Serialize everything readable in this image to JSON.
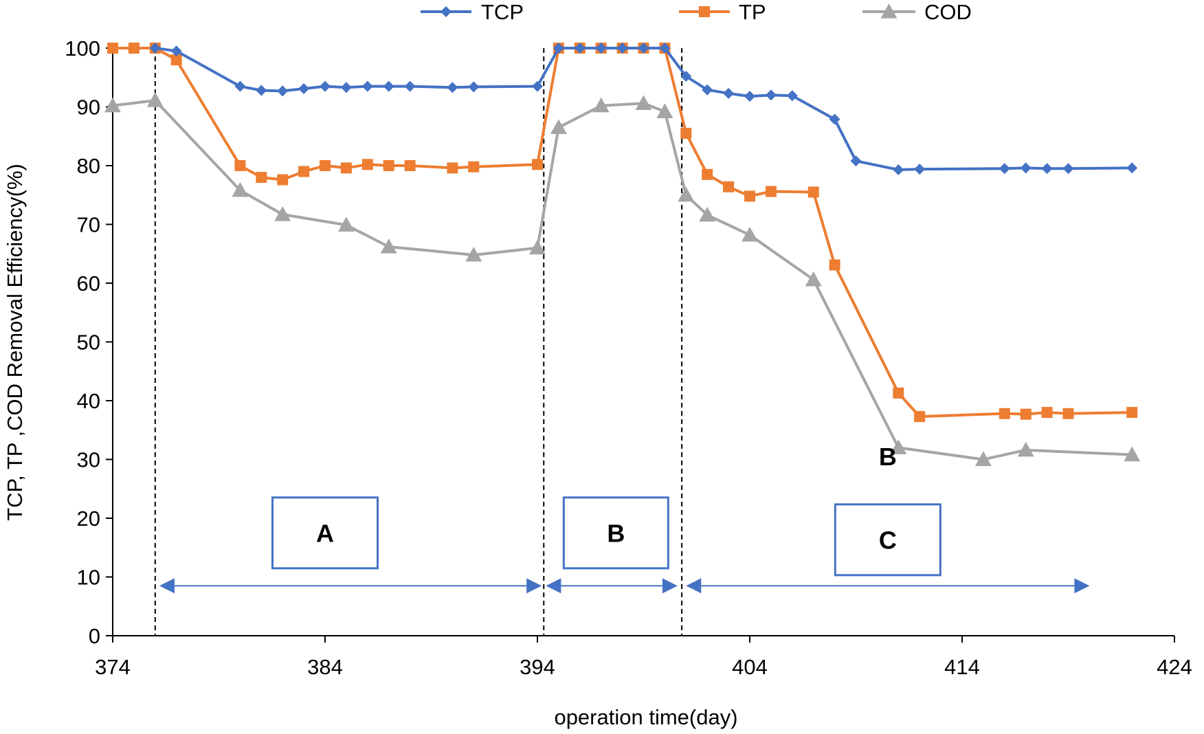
{
  "chart_data": {
    "type": "line",
    "title": "",
    "xlabel": "operation time(day)",
    "ylabel": "TCP, TP ,COD Removal Efficiency(%)",
    "xlim": [
      374,
      424
    ],
    "ylim": [
      0,
      100
    ],
    "x_ticks": [
      374,
      384,
      394,
      404,
      414,
      424
    ],
    "y_ticks": [
      0,
      10,
      20,
      30,
      40,
      50,
      60,
      70,
      80,
      90,
      100
    ],
    "grid": false,
    "legend_position": "top",
    "series": [
      {
        "name": "TCP",
        "color": "#4472C4",
        "marker": "diamond",
        "x": [
          376,
          377,
          380,
          381,
          382,
          383,
          384,
          385,
          386,
          387,
          388,
          390,
          391,
          394,
          395,
          396,
          397,
          398,
          399,
          400,
          401,
          402,
          403,
          404,
          405,
          406,
          408,
          409,
          411,
          412,
          416,
          417,
          418,
          419,
          422
        ],
        "y": [
          100,
          99.5,
          93.5,
          92.8,
          92.7,
          93.1,
          93.5,
          93.3,
          93.5,
          93.5,
          93.5,
          93.3,
          93.4,
          93.5,
          100,
          100,
          100,
          100,
          100,
          100,
          95.2,
          92.9,
          92.3,
          91.8,
          92,
          91.9,
          87.9,
          80.8,
          79.3,
          79.4,
          79.5,
          79.6,
          79.5,
          79.5,
          79.6
        ]
      },
      {
        "name": "TP",
        "color": "#ED7D31",
        "marker": "square",
        "x": [
          374,
          375,
          376,
          377,
          380,
          381,
          382,
          383,
          384,
          385,
          386,
          387,
          388,
          390,
          391,
          394,
          395,
          396,
          397,
          398,
          399,
          400,
          401,
          402,
          403,
          404,
          405,
          407,
          408,
          411,
          412,
          416,
          417,
          418,
          419,
          422
        ],
        "y": [
          100,
          100,
          100,
          98,
          80,
          78,
          77.6,
          79,
          80,
          79.6,
          80.2,
          80,
          80,
          79.6,
          79.8,
          80.2,
          100,
          100,
          100,
          100,
          100,
          100,
          85.5,
          78.5,
          76.4,
          74.8,
          75.6,
          75.5,
          63.1,
          41.3,
          37.3,
          37.8,
          37.7,
          38,
          37.8,
          38
        ]
      },
      {
        "name": "COD",
        "color": "#A5A5A5",
        "marker": "triangle",
        "x": [
          374,
          376,
          380,
          382,
          385,
          387,
          391,
          394,
          395,
          397,
          399,
          400,
          401,
          402,
          404,
          407,
          411,
          415,
          417,
          422
        ],
        "y": [
          90.2,
          91.1,
          75.8,
          71.7,
          69.9,
          66.2,
          64.8,
          66,
          86.5,
          90.2,
          90.6,
          89.2,
          75,
          71.6,
          68.2,
          60.6,
          32,
          30,
          31.6,
          30.8
        ]
      }
    ],
    "phase_dividers_x": [
      376,
      394.3,
      400.8
    ],
    "phase_arrows": [
      {
        "from": 376.2,
        "to": 394.2
      },
      {
        "from": 394.4,
        "to": 400.6
      },
      {
        "from": 401,
        "to": 420
      }
    ],
    "phase_boxes": [
      {
        "label": "A",
        "center_x": 384,
        "center_y": 17.5
      },
      {
        "label": "B",
        "center_x": 397.7,
        "center_y": 17.5
      },
      {
        "label": "C",
        "center_x": 410.5,
        "center_y": 17.5
      }
    ],
    "annotations": [
      {
        "text": "B",
        "x": 410.5,
        "y": 29
      }
    ]
  }
}
